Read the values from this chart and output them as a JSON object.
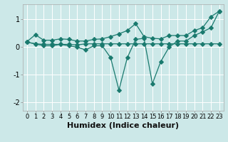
{
  "x": [
    0,
    1,
    2,
    3,
    4,
    5,
    6,
    7,
    8,
    9,
    10,
    11,
    12,
    13,
    14,
    15,
    16,
    17,
    18,
    19,
    20,
    21,
    22,
    23
  ],
  "line1": [
    0.2,
    0.45,
    0.25,
    0.25,
    0.3,
    0.28,
    0.22,
    0.22,
    0.28,
    0.3,
    0.38,
    0.48,
    0.6,
    0.85,
    0.38,
    0.32,
    0.3,
    0.42,
    0.42,
    0.42,
    0.6,
    0.7,
    1.1,
    1.3
  ],
  "line2": [
    0.18,
    0.12,
    0.1,
    0.1,
    0.1,
    0.1,
    0.08,
    0.12,
    0.12,
    0.12,
    0.12,
    0.12,
    0.12,
    0.12,
    0.12,
    0.12,
    0.12,
    0.12,
    0.12,
    0.12,
    0.12,
    0.12,
    0.12,
    0.12
  ],
  "line3": [
    0.18,
    0.12,
    0.05,
    0.05,
    0.1,
    0.05,
    0.0,
    -0.1,
    0.05,
    0.05,
    -0.38,
    -1.55,
    -0.38,
    0.28,
    0.32,
    -1.32,
    -0.52,
    0.0,
    0.22,
    0.22,
    0.42,
    0.55,
    0.7,
    1.3
  ],
  "line_color": "#1a7a6e",
  "bg_color": "#cce8e8",
  "grid_color": "#ffffff",
  "xlabel": "Humidex (Indice chaleur)",
  "xlabel_fontsize": 8,
  "tick_fontsize": 6,
  "yticks": [
    -2,
    -1,
    0,
    1
  ],
  "ylim": [
    -2.3,
    1.55
  ],
  "xlim": [
    -0.5,
    23.5
  ],
  "xticks": [
    0,
    1,
    2,
    3,
    4,
    5,
    6,
    7,
    8,
    9,
    10,
    11,
    12,
    13,
    14,
    15,
    16,
    17,
    18,
    19,
    20,
    21,
    22,
    23
  ],
  "figsize": [
    3.2,
    2.0
  ],
  "dpi": 100
}
